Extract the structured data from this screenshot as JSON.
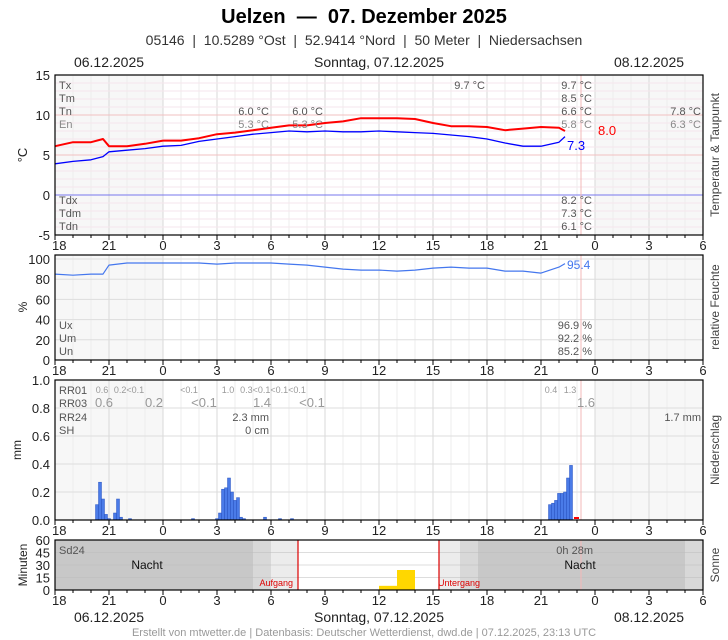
{
  "header": {
    "title": "Uelzen  —  07. Dezember 2025",
    "subtitle": "05146  |  10.5289 °Ost  |  52.9414 °Nord  |  50 Meter  |  Niedersachsen",
    "date_left": "06.12.2025",
    "date_center": "Sonntag, 07.12.2025",
    "date_right": "08.12.2025"
  },
  "footer": "Erstellt von mtwetter.de | Datenbasis: Deutscher Wetterdienst, dwd.de | 07.12.2025, 23:13 UTC",
  "x_ticks": [
    "18",
    "21",
    "0",
    "3",
    "6",
    "9",
    "12",
    "15",
    "18",
    "21",
    "0",
    "3",
    "6"
  ],
  "colors": {
    "temperature": "#ff0000",
    "dewpoint": "#0000ff",
    "humidity": "#4477ee",
    "precip": "#4a7be8",
    "sunshine": "#ffd700",
    "sunline": "#dd0000",
    "night": "#c8c8c8"
  },
  "chart_data": [
    {
      "type": "line",
      "title": "Temperatur & Taupunkt",
      "ylabel": "°C",
      "ylim": [
        -5,
        15
      ],
      "yticks": [
        "15",
        "10",
        "5",
        "0",
        "-5"
      ],
      "x_range": [
        "06.12 18:00",
        "08.12 06:00"
      ],
      "grid": true,
      "series": [
        {
          "key": "temperature",
          "last_label": "8.0",
          "points": [
            [
              "06.12 18:00",
              6.1
            ],
            [
              "06.12 19:00",
              6.6
            ],
            [
              "06.12 20:00",
              6.6
            ],
            [
              "06.12 20:40",
              7.0
            ],
            [
              "06.12 21:00",
              6.1
            ],
            [
              "06.12 22:00",
              6.1
            ],
            [
              "06.12 23:00",
              6.4
            ],
            [
              "07.12 00:00",
              6.8
            ],
            [
              "07.12 01:00",
              6.8
            ],
            [
              "07.12 02:00",
              7.1
            ],
            [
              "07.12 03:00",
              7.6
            ],
            [
              "07.12 04:00",
              7.8
            ],
            [
              "07.12 05:00",
              8.1
            ],
            [
              "07.12 06:00",
              8.4
            ],
            [
              "07.12 07:00",
              8.7
            ],
            [
              "07.12 08:00",
              8.7
            ],
            [
              "07.12 09:00",
              9.0
            ],
            [
              "07.12 10:00",
              9.2
            ],
            [
              "07.12 11:00",
              9.6
            ],
            [
              "07.12 12:00",
              9.6
            ],
            [
              "07.12 13:00",
              9.6
            ],
            [
              "07.12 14:00",
              9.5
            ],
            [
              "07.12 15:00",
              9.0
            ],
            [
              "07.12 16:00",
              8.6
            ],
            [
              "07.12 17:00",
              8.6
            ],
            [
              "07.12 18:00",
              8.5
            ],
            [
              "07.12 19:00",
              8.1
            ],
            [
              "07.12 20:00",
              8.3
            ],
            [
              "07.12 21:00",
              8.5
            ],
            [
              "07.12 22:00",
              8.4
            ],
            [
              "07.12 22:20",
              8.0
            ]
          ]
        },
        {
          "key": "dewpoint",
          "last_label": "7.3",
          "points": [
            [
              "06.12 18:00",
              3.9
            ],
            [
              "06.12 19:00",
              4.2
            ],
            [
              "06.12 20:00",
              4.4
            ],
            [
              "06.12 20:40",
              4.8
            ],
            [
              "06.12 21:00",
              5.4
            ],
            [
              "06.12 22:00",
              5.6
            ],
            [
              "06.12 23:00",
              5.8
            ],
            [
              "07.12 00:00",
              6.1
            ],
            [
              "07.12 01:00",
              6.2
            ],
            [
              "07.12 02:00",
              6.7
            ],
            [
              "07.12 03:00",
              7.0
            ],
            [
              "07.12 04:00",
              7.3
            ],
            [
              "07.12 05:00",
              7.6
            ],
            [
              "07.12 06:00",
              7.8
            ],
            [
              "07.12 07:00",
              8.0
            ],
            [
              "07.12 08:00",
              7.9
            ],
            [
              "07.12 09:00",
              8.0
            ],
            [
              "07.12 10:00",
              7.9
            ],
            [
              "07.12 11:00",
              7.9
            ],
            [
              "07.12 12:00",
              8.0
            ],
            [
              "07.12 13:00",
              7.9
            ],
            [
              "07.12 14:00",
              7.8
            ],
            [
              "07.12 15:00",
              7.7
            ],
            [
              "07.12 16:00",
              7.5
            ],
            [
              "07.12 17:00",
              7.3
            ],
            [
              "07.12 18:00",
              7.0
            ],
            [
              "07.12 19:00",
              6.5
            ],
            [
              "07.12 20:00",
              6.1
            ],
            [
              "07.12 21:00",
              6.1
            ],
            [
              "07.12 22:00",
              6.6
            ],
            [
              "07.12 22:20",
              7.3
            ]
          ]
        }
      ],
      "stats": {
        "labels": [
          "Tx",
          "Tm",
          "Tn",
          "En"
        ],
        "dew_labels": [
          "Tdx",
          "Tdm",
          "Tdn"
        ],
        "tn_mid_1": "6.0 °C",
        "en_mid_1": "5.3 °C",
        "tn_mid_2": "6.0 °C",
        "en_mid_2": "5.3 °C",
        "tx_mid": "9.7 °C",
        "day": {
          "Tx": "9.7 °C",
          "Tm": "8.5 °C",
          "Tn": "6.6 °C",
          "En": "5.8 °C",
          "Tdx": "8.2 °C",
          "Tdm": "7.3 °C",
          "Tdn": "6.1 °C"
        },
        "next": {
          "Tn": "7.8 °C",
          "En": "6.3 °C"
        }
      }
    },
    {
      "type": "line",
      "title": "relative Feuchte",
      "ylabel": "%",
      "ylim": [
        0,
        100
      ],
      "yticks": [
        "100",
        "80",
        "60",
        "40",
        "20",
        "0"
      ],
      "series": [
        {
          "key": "humidity",
          "last_label": "95.4",
          "points": [
            [
              "06.12 18:00",
              85
            ],
            [
              "06.12 19:00",
              84
            ],
            [
              "06.12 20:00",
              85
            ],
            [
              "06.12 20:40",
              85
            ],
            [
              "06.12 21:00",
              94
            ],
            [
              "06.12 22:00",
              96
            ],
            [
              "06.12 23:00",
              96
            ],
            [
              "07.12 00:00",
              96
            ],
            [
              "07.12 01:00",
              96
            ],
            [
              "07.12 02:00",
              96
            ],
            [
              "07.12 03:00",
              95
            ],
            [
              "07.12 04:00",
              96
            ],
            [
              "07.12 05:00",
              96
            ],
            [
              "07.12 06:00",
              96
            ],
            [
              "07.12 07:00",
              95
            ],
            [
              "07.12 08:00",
              94
            ],
            [
              "07.12 09:00",
              92
            ],
            [
              "07.12 10:00",
              90
            ],
            [
              "07.12 11:00",
              89
            ],
            [
              "07.12 12:00",
              89
            ],
            [
              "07.12 13:00",
              88
            ],
            [
              "07.12 14:00",
              89
            ],
            [
              "07.12 15:00",
              91
            ],
            [
              "07.12 16:00",
              92
            ],
            [
              "07.12 17:00",
              91
            ],
            [
              "07.12 18:00",
              91
            ],
            [
              "07.12 19:00",
              88
            ],
            [
              "07.12 20:00",
              88
            ],
            [
              "07.12 21:00",
              86
            ],
            [
              "07.12 22:00",
              92
            ],
            [
              "07.12 22:20",
              95.4
            ]
          ]
        }
      ],
      "stats": {
        "labels": [
          "Ux",
          "Um",
          "Un"
        ],
        "values": [
          "96.9 %",
          "92.2 %",
          "85.2 %"
        ]
      }
    },
    {
      "type": "bar",
      "title": "Niederschlag",
      "ylabel": "mm",
      "ylim": [
        0,
        1.0
      ],
      "yticks": [
        "1.0",
        "0.8",
        "0.6",
        "0.4",
        "0.2",
        "0.0"
      ],
      "bars": [
        [
          "06.12 20:20",
          0.11
        ],
        [
          "06.12 20:30",
          0.27
        ],
        [
          "06.12 20:40",
          0.15
        ],
        [
          "06.12 20:50",
          0.04
        ],
        [
          "06.12 21:00",
          0.01
        ],
        [
          "06.12 21:20",
          0.05
        ],
        [
          "06.12 21:30",
          0.15
        ],
        [
          "06.12 21:40",
          0.02
        ],
        [
          "06.12 22:10",
          0.01
        ],
        [
          "07.12 01:40",
          0.01
        ],
        [
          "07.12 03:00",
          0.01
        ],
        [
          "07.12 03:10",
          0.05
        ],
        [
          "07.12 03:20",
          0.22
        ],
        [
          "07.12 03:30",
          0.23
        ],
        [
          "07.12 03:40",
          0.3
        ],
        [
          "07.12 03:50",
          0.2
        ],
        [
          "07.12 04:00",
          0.14
        ],
        [
          "07.12 04:10",
          0.16
        ],
        [
          "07.12 04:20",
          0.02
        ],
        [
          "07.12 04:30",
          0.01
        ],
        [
          "07.12 05:40",
          0.02
        ],
        [
          "07.12 06:30",
          0.01
        ],
        [
          "07.12 07:10",
          0.01
        ],
        [
          "07.12 21:30",
          0.11
        ],
        [
          "07.12 21:40",
          0.12
        ],
        [
          "07.12 21:50",
          0.14
        ],
        [
          "07.12 22:00",
          0.19
        ],
        [
          "07.12 22:10",
          0.19
        ],
        [
          "07.12 22:20",
          0.2
        ],
        [
          "07.12 22:30",
          0.3
        ],
        [
          "07.12 22:40",
          0.39
        ]
      ],
      "stats": {
        "labels": [
          "RR01",
          "RR03",
          "RR24",
          "SH"
        ],
        "rr01": [
          "0.6",
          "0.2<0.1",
          "<0.1",
          "1.0",
          "0.3<0.1<0.1<0.1",
          "0.4",
          "1.3"
        ],
        "rr03": [
          "0.6",
          "0.2",
          "<0.1",
          "1.4",
          "<0.1",
          "1.6"
        ],
        "rr24": "2.3 mm",
        "rr24_next": "1.7 mm",
        "sh": "0 cm"
      }
    },
    {
      "type": "bar",
      "title": "Sonne",
      "ylabel": "Minuten",
      "ylim": [
        0,
        60
      ],
      "yticks": [
        "60",
        "45",
        "30",
        "15",
        "0"
      ],
      "bars": [
        [
          "07.12 12:00",
          5
        ],
        [
          "07.12 13:00",
          24
        ]
      ],
      "sunrise": "07.12 07:30",
      "sunset": "07.12 15:20",
      "labels": {
        "sd24": "Sd24",
        "night": "Nacht",
        "sunrise": "Aufgang",
        "sunset": "Untergang",
        "sd_day": "0h 28m"
      }
    }
  ]
}
